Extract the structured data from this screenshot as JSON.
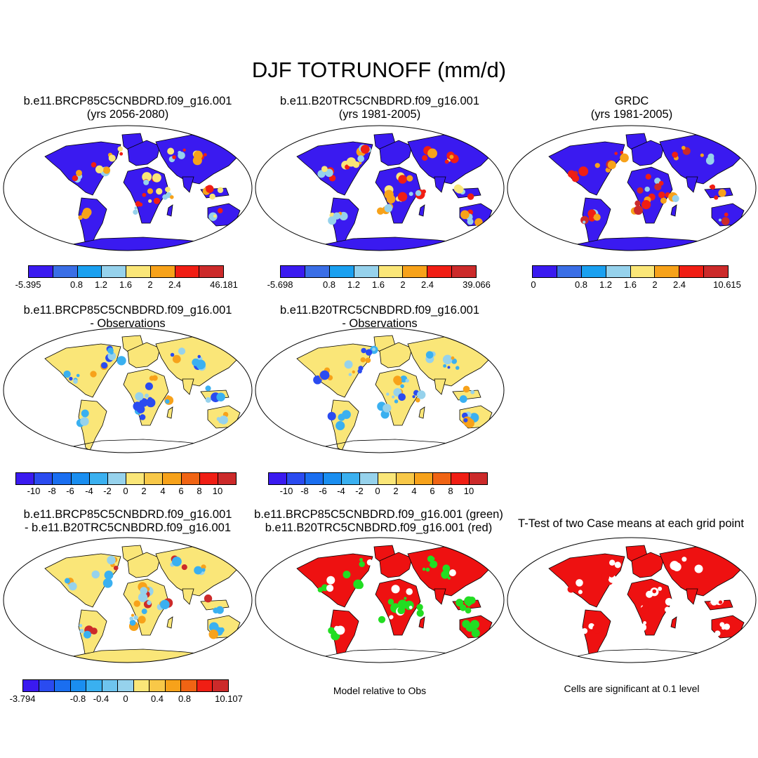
{
  "title": "DJF TOTRUNOFF (mm/d)",
  "panels": [
    {
      "line1": "b.e11.BRCP85C5CNBDRD.f09_g16.001",
      "line2": "(yrs 2056-2080)",
      "icon": "world-map"
    },
    {
      "line1": "b.e11.B20TRC5CNBDRD.f09_g16.001",
      "line2": "(yrs 1981-2005)",
      "icon": "world-map"
    },
    {
      "line1": "GRDC",
      "line2": "(yrs 1981-2005)",
      "icon": "world-map"
    },
    {
      "line1": "b.e11.BRCP85C5CNBDRD.f09_g16.001",
      "line2": "- Observations",
      "icon": "world-map"
    },
    {
      "line1": "b.e11.B20TRC5CNBDRD.f09_g16.001",
      "line2": "- Observations",
      "icon": "world-map"
    },
    {
      "line1": "b.e11.BRCP85C5CNBDRD.f09_g16.001",
      "line2": "- b.e11.B20TRC5CNBDRD.f09_g16.001",
      "icon": "world-map"
    },
    {
      "line1": "b.e11.BRCP85C5CNBDRD.f09_g16.001 (green)",
      "line2": "b.e11.B20TRC5CNBDRD.f09_g16.001 (red)",
      "icon": "world-map"
    },
    {
      "line1": "T-Test of two Case means at each grid point",
      "line2": "",
      "icon": "world-map"
    }
  ],
  "colorbars": {
    "cb1": {
      "labels": [
        "-5.395",
        "0.8",
        "1.2",
        "1.6",
        "2",
        "2.4",
        "46.181"
      ]
    },
    "cb2": {
      "labels": [
        "-5.698",
        "0.8",
        "1.2",
        "1.6",
        "2",
        "2.4",
        "39.066"
      ]
    },
    "cb3": {
      "labels": [
        "0",
        "0.8",
        "1.2",
        "1.6",
        "2",
        "2.4",
        "10.615"
      ]
    },
    "cb4": {
      "labels": [
        "-10",
        "-8",
        "-6",
        "-4",
        "-2",
        "0",
        "2",
        "4",
        "6",
        "8",
        "10"
      ]
    },
    "cb5": {
      "labels": [
        "-10",
        "-8",
        "-6",
        "-4",
        "-2",
        "0",
        "2",
        "4",
        "6",
        "8",
        "10"
      ]
    },
    "cb6": {
      "labels": [
        "-3.794",
        "-0.8",
        "-0.4",
        "0",
        "0.4",
        "0.8",
        "10.107"
      ]
    }
  },
  "notes": {
    "model_obs": "Model relative to Obs",
    "significance": "Cells are significant at 0.1 level"
  },
  "colors": {
    "runoff_scale": [
      "#3a1af0",
      "#3a6ee6",
      "#1aa0f0",
      "#96d2ec",
      "#fae678",
      "#f7a21a",
      "#f01e14",
      "#cc2a2a"
    ],
    "diff_scale": [
      "#3a1af0",
      "#2a4bf0",
      "#1a6ef0",
      "#1a8ef0",
      "#3ab0f0",
      "#96d2ec",
      "#fae678",
      "#f8c848",
      "#f7a21a",
      "#f06414",
      "#f01e14",
      "#cc2a2a"
    ],
    "diff_scale_6": [
      "#3a1af0",
      "#2a4bf0",
      "#1a6ef0",
      "#1a8ef0",
      "#3ab0f0",
      "#6ec4ee",
      "#96d2ec",
      "#fae678",
      "#f8c848",
      "#f7a21a",
      "#f06414",
      "#f01e14",
      "#cc2a2a"
    ]
  }
}
